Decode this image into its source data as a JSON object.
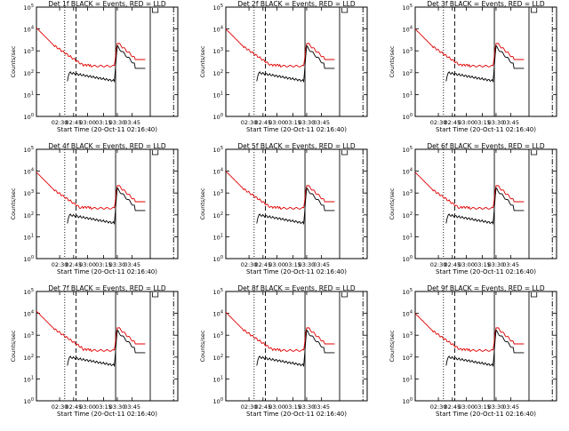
{
  "chart_data": [
    {
      "type": "line",
      "title": "Det 1f BLACK = Events, RED = LLD",
      "ylabel": "Counts/sec",
      "xlabel": "Start Time (20-Oct-11 02:16:40)",
      "xticks": [
        "02:30",
        "02:45",
        "03:00",
        "03:15",
        "03:30",
        "03:45"
      ],
      "yticks": [
        "10^0",
        "10^1",
        "10^2",
        "10^3",
        "10^4",
        "10^5"
      ],
      "series": [
        {
          "color": "#000000",
          "values": []
        },
        {
          "color": "#e00000",
          "values": []
        }
      ]
    },
    {
      "type": "line",
      "title": "Det 2f BLACK = Events, RED = LLD",
      "ylabel": "Counts/sec",
      "xlabel": "Start Time (20-Oct-11 02:16:40)",
      "xticks": [
        "02:30",
        "02:45",
        "03:00",
        "03:15",
        "03:30",
        "03:45"
      ],
      "yticks": [
        "10^0",
        "10^1",
        "10^2",
        "10^3",
        "10^4",
        "10^5"
      ],
      "series": [
        {
          "color": "#000000",
          "values": []
        },
        {
          "color": "#e00000",
          "values": []
        }
      ]
    },
    {
      "type": "line",
      "title": "Det 3f BLACK = Events, RED = LLD",
      "ylabel": "Counts/sec",
      "xlabel": "Start Time (20-Oct-11 02:16:40)",
      "xticks": [
        "02:30",
        "02:45",
        "03:00",
        "03:15",
        "03:30",
        "03:45"
      ],
      "yticks": [
        "10^0",
        "10^1",
        "10^2",
        "10^3",
        "10^4",
        "10^5"
      ],
      "series": [
        {
          "color": "#000000",
          "values": []
        },
        {
          "color": "#e00000",
          "values": []
        }
      ]
    },
    {
      "type": "line",
      "title": "Det 4f BLACK = Events, RED = LLD",
      "ylabel": "Counts/sec",
      "xlabel": "Start Time (20-Oct-11 02:16:40)",
      "xticks": [
        "02:30",
        "02:45",
        "03:00",
        "03:15",
        "03:30",
        "03:45"
      ],
      "yticks": [
        "10^0",
        "10^1",
        "10^2",
        "10^3",
        "10^4",
        "10^5"
      ],
      "series": [
        {
          "color": "#000000",
          "values": []
        },
        {
          "color": "#e00000",
          "values": []
        }
      ]
    },
    {
      "type": "line",
      "title": "Det 5f BLACK = Events, RED = LLD",
      "ylabel": "Counts/sec",
      "xlabel": "Start Time (20-Oct-11 02:16:40)",
      "xticks": [
        "02:30",
        "02:45",
        "03:00",
        "03:15",
        "03:30",
        "03:45"
      ],
      "yticks": [
        "10^0",
        "10^1",
        "10^2",
        "10^3",
        "10^4",
        "10^5"
      ],
      "series": [
        {
          "color": "#000000",
          "values": []
        },
        {
          "color": "#e00000",
          "values": []
        }
      ]
    },
    {
      "type": "line",
      "title": "Det 6f BLACK = Events, RED = LLD",
      "ylabel": "Counts/sec",
      "xlabel": "Start Time (20-Oct-11 02:16:40)",
      "xticks": [
        "02:30",
        "02:45",
        "03:00",
        "03:15",
        "03:30",
        "03:45"
      ],
      "yticks": [
        "10^0",
        "10^1",
        "10^2",
        "10^3",
        "10^4",
        "10^5"
      ],
      "series": [
        {
          "color": "#000000",
          "values": []
        },
        {
          "color": "#e00000",
          "values": []
        }
      ]
    },
    {
      "type": "line",
      "title": "Det 7f BLACK = Events, RED = LLD",
      "ylabel": "Counts/sec",
      "xlabel": "Start Time (20-Oct-11 02:16:40)",
      "xticks": [
        "02:30",
        "02:45",
        "03:00",
        "03:15",
        "03:30",
        "03:45"
      ],
      "yticks": [
        "10^0",
        "10^1",
        "10^2",
        "10^3",
        "10^4",
        "10^5"
      ],
      "series": [
        {
          "color": "#000000",
          "values": []
        },
        {
          "color": "#e00000",
          "values": []
        }
      ]
    },
    {
      "type": "line",
      "title": "Det 8f BLACK = Events, RED = LLD",
      "ylabel": "Counts/sec",
      "xlabel": "Start Time (20-Oct-11 02:16:40)",
      "xticks": [
        "02:30",
        "02:45",
        "03:00",
        "03:15",
        "03:30",
        "03:45"
      ],
      "yticks": [
        "10^0",
        "10^1",
        "10^2",
        "10^3",
        "10^4",
        "10^5"
      ],
      "series": [
        {
          "color": "#000000",
          "values": []
        },
        {
          "color": "#e00000",
          "values": []
        }
      ]
    },
    {
      "type": "line",
      "title": "Det 9f BLACK = Events, RED = LLD",
      "ylabel": "Counts/sec",
      "xlabel": "Start Time (20-Oct-11 02:16:40)",
      "xticks": [
        "02:30",
        "02:45",
        "03:00",
        "03:15",
        "03:30",
        "03:45"
      ],
      "yticks": [
        "10^0",
        "10^1",
        "10^2",
        "10^3",
        "10^4",
        "10^5"
      ],
      "series": [
        {
          "color": "#000000",
          "values": []
        },
        {
          "color": "#e00000",
          "values": []
        }
      ]
    }
  ]
}
